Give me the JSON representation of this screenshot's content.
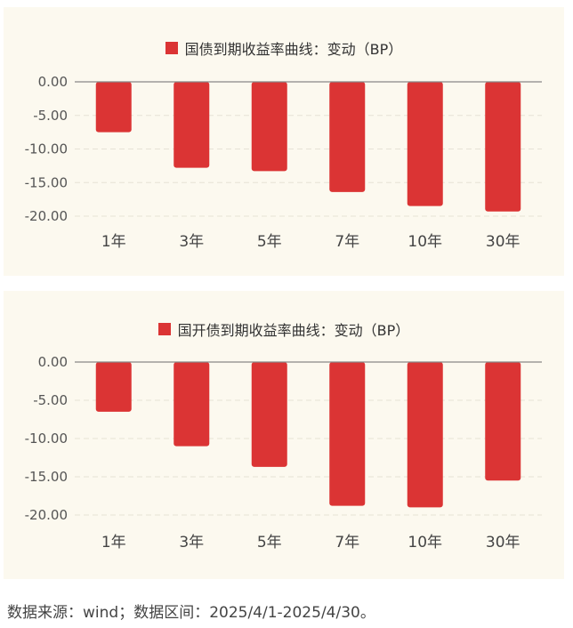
{
  "colors": {
    "bar": "#db3434",
    "grid": "#e6e2d6",
    "zero_line": "#888888",
    "panel_bg": "#fcf9ef"
  },
  "charts": [
    {
      "legend": "国债到期收益率曲线：变动（BP）"
    },
    {
      "legend": "国开债到期收益率曲线：变动（BP）"
    }
  ],
  "chart_data": [
    {
      "type": "bar",
      "title": "",
      "series": [
        {
          "name": "国债到期收益率曲线：变动（BP）",
          "values": [
            -7.5,
            -12.8,
            -13.3,
            -16.4,
            -18.5,
            -19.3
          ]
        }
      ],
      "categories": [
        "1年",
        "3年",
        "5年",
        "7年",
        "10年",
        "30年"
      ],
      "y_ticks": [
        "0.00",
        "-5.00",
        "-10.00",
        "-15.00",
        "-20.00"
      ],
      "ylim": [
        -20,
        0
      ],
      "grid": true,
      "legend_position": "top"
    },
    {
      "type": "bar",
      "title": "",
      "series": [
        {
          "name": "国开债到期收益率曲线：变动（BP）",
          "values": [
            -6.5,
            -11.0,
            -13.7,
            -18.8,
            -19.0,
            -15.5
          ]
        }
      ],
      "categories": [
        "1年",
        "3年",
        "5年",
        "7年",
        "10年",
        "30年"
      ],
      "y_ticks": [
        "0.00",
        "-5.00",
        "-10.00",
        "-15.00",
        "-20.00"
      ],
      "ylim": [
        -20,
        0
      ],
      "grid": true,
      "legend_position": "top"
    }
  ],
  "source_note": "数据来源：wind；数据区间：2025/4/1-2025/4/30。"
}
